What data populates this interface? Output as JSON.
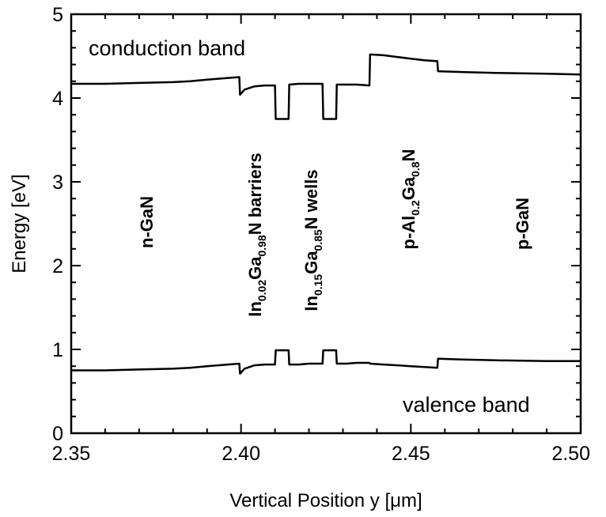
{
  "chart_data": {
    "type": "line",
    "xlabel": "Vertical Position y [μm]",
    "ylabel": "Energy [eV]",
    "xlim": [
      2.35,
      2.5
    ],
    "ylim": [
      0,
      5
    ],
    "xticks": [
      "2.35",
      "2.40",
      "2.45",
      "2.50"
    ],
    "yticks": [
      "0",
      "1",
      "2",
      "3",
      "4",
      "5"
    ],
    "grid": false,
    "annotations": {
      "conduction": "conduction band",
      "valence": "valence band"
    },
    "region_labels": {
      "n_gan": "n-GaN",
      "barriers": {
        "a": "In",
        "a_sub": "0.02",
        "b": "Ga",
        "b_sub": "0.98",
        "c": "N barriers"
      },
      "wells": {
        "a": "In",
        "a_sub": "0.15",
        "b": "Ga",
        "b_sub": "0.85",
        "c": "N wells"
      },
      "algan": {
        "a": "p-Al",
        "a_sub": "0.2",
        "b": "Ga",
        "b_sub": "0.8",
        "c": "N"
      },
      "p_gan": "p-GaN"
    },
    "series": [
      {
        "x": [
          2.35,
          2.36,
          2.37,
          2.38,
          2.385,
          2.39,
          2.3995,
          2.3997,
          2.401,
          2.404,
          2.407,
          2.41,
          2.4102,
          2.414,
          2.4142,
          2.417,
          2.42,
          2.424,
          2.4242,
          2.428,
          2.4282,
          2.431,
          2.434,
          2.4378,
          2.438,
          2.442,
          2.446,
          2.45,
          2.454,
          2.4578,
          2.458,
          2.465,
          2.475,
          2.49,
          2.5
        ],
        "y": [
          4.17,
          4.17,
          4.18,
          4.19,
          4.2,
          4.22,
          4.25,
          4.04,
          4.1,
          4.14,
          4.15,
          4.15,
          3.75,
          3.75,
          4.16,
          4.17,
          4.17,
          4.17,
          3.75,
          3.75,
          4.16,
          4.16,
          4.16,
          4.15,
          4.52,
          4.51,
          4.49,
          4.47,
          4.45,
          4.44,
          4.32,
          4.31,
          4.3,
          4.29,
          4.28
        ]
      },
      {
        "x": [
          2.35,
          2.36,
          2.37,
          2.38,
          2.385,
          2.39,
          2.3995,
          2.3997,
          2.401,
          2.404,
          2.407,
          2.41,
          2.4102,
          2.414,
          2.4142,
          2.417,
          2.42,
          2.424,
          2.4242,
          2.428,
          2.4282,
          2.431,
          2.434,
          2.4378,
          2.438,
          2.442,
          2.446,
          2.45,
          2.454,
          2.4578,
          2.458,
          2.465,
          2.475,
          2.49,
          2.5
        ],
        "y": [
          0.75,
          0.75,
          0.76,
          0.77,
          0.78,
          0.8,
          0.83,
          0.71,
          0.77,
          0.81,
          0.82,
          0.82,
          0.99,
          0.99,
          0.82,
          0.82,
          0.83,
          0.83,
          0.99,
          0.99,
          0.83,
          0.83,
          0.84,
          0.84,
          0.83,
          0.82,
          0.81,
          0.8,
          0.79,
          0.78,
          0.89,
          0.88,
          0.87,
          0.86,
          0.86
        ]
      }
    ]
  }
}
